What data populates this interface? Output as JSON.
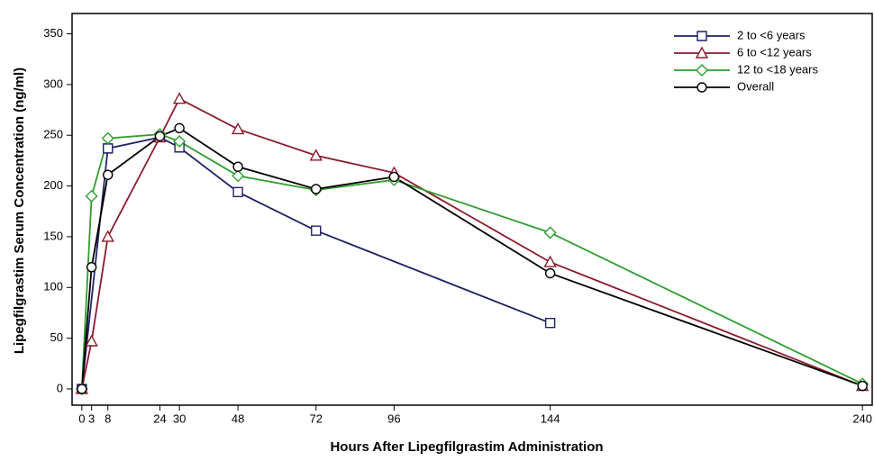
{
  "chart_data": {
    "type": "line",
    "x_label": "Hours After Lipegfilgrastim Administration",
    "y_label": "Lipegfilgrastim Serum Concentration (ng/ml)",
    "xlim": [
      -3,
      243
    ],
    "ylim": [
      -16,
      370
    ],
    "xticks": [
      0,
      3,
      8,
      24,
      30,
      48,
      72,
      96,
      144,
      240
    ],
    "yticks": [
      0,
      50,
      100,
      150,
      200,
      250,
      300,
      350
    ],
    "legend": "upper right",
    "series": [
      {
        "name": "2 to <6 years",
        "color": "#1f2266",
        "marker": "square",
        "x": [
          0,
          8,
          24,
          30,
          48,
          72,
          144
        ],
        "values": [
          0,
          237,
          248,
          238,
          194,
          156,
          65
        ]
      },
      {
        "name": "6 to <12 years",
        "color": "#8b1a2b",
        "marker": "triangle",
        "x": [
          0,
          3,
          8,
          24,
          30,
          48,
          72,
          96,
          144,
          240
        ],
        "values": [
          0,
          47,
          150,
          248,
          286,
          256,
          230,
          213,
          125,
          3
        ]
      },
      {
        "name": "12 to <18 years",
        "color": "#2e9e2e",
        "marker": "diamond",
        "x": [
          0,
          3,
          8,
          24,
          30,
          48,
          72,
          96,
          144,
          240
        ],
        "values": [
          0,
          190,
          247,
          251,
          244,
          210,
          196,
          206,
          154,
          5
        ]
      },
      {
        "name": "Overall",
        "color": "#000000",
        "marker": "circle",
        "x": [
          0,
          3,
          8,
          24,
          30,
          48,
          72,
          96,
          144,
          240
        ],
        "values": [
          0,
          120,
          211,
          249,
          257,
          219,
          197,
          209,
          114,
          3
        ]
      }
    ]
  }
}
